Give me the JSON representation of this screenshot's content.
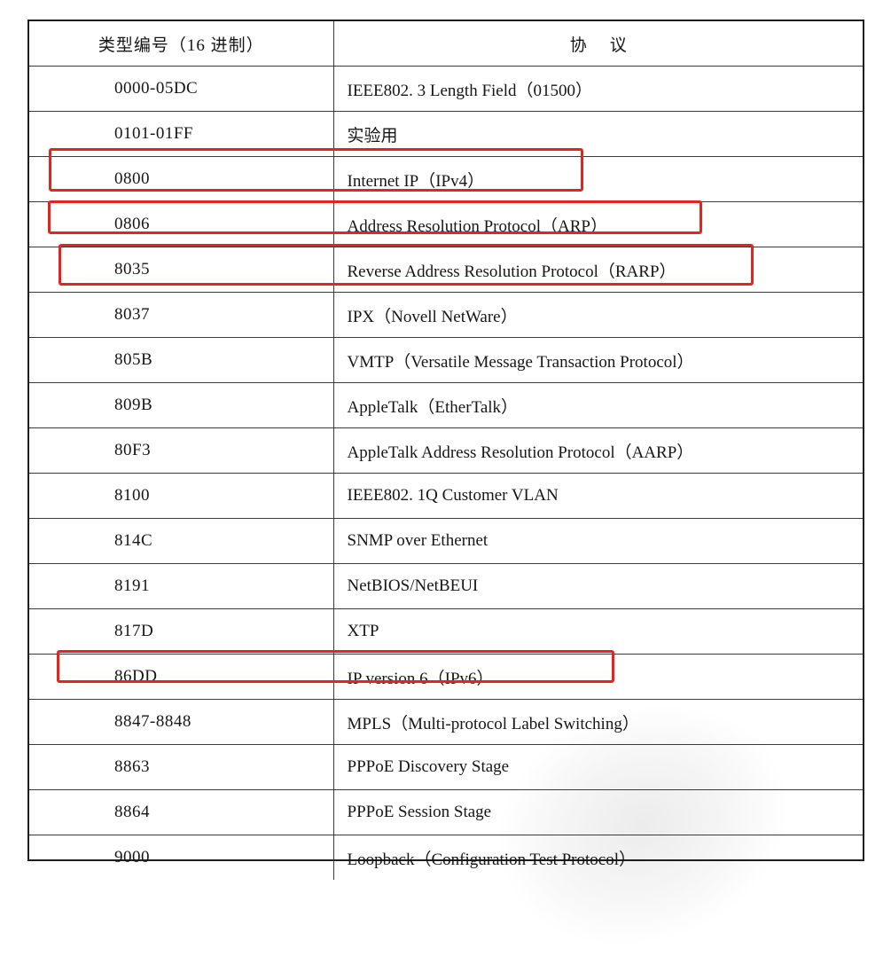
{
  "table": {
    "header": {
      "type_col": "类型编号（16 进制）",
      "protocol_col": "协议"
    },
    "rows": [
      {
        "code": "0000-05DC",
        "protocol": "IEEE802. 3 Length Field（01500）",
        "highlighted": false
      },
      {
        "code": "0101-01FF",
        "protocol": "实验用",
        "highlighted": false
      },
      {
        "code": "0800",
        "protocol": "Internet IP（IPv4）",
        "highlighted": true
      },
      {
        "code": "0806",
        "protocol": "Address Resolution Protocol（ARP）",
        "highlighted": true
      },
      {
        "code": "8035",
        "protocol": "Reverse Address Resolution Protocol（RARP）",
        "highlighted": true
      },
      {
        "code": "8037",
        "protocol": "IPX（Novell NetWare）",
        "highlighted": false
      },
      {
        "code": "805B",
        "protocol": "VMTP（Versatile Message Transaction Protocol）",
        "highlighted": false
      },
      {
        "code": "809B",
        "protocol": "AppleTalk（EtherTalk）",
        "highlighted": false
      },
      {
        "code": "80F3",
        "protocol": "AppleTalk Address Resolution Protocol（AARP）",
        "highlighted": false
      },
      {
        "code": "8100",
        "protocol": "IEEE802. 1Q Customer VLAN",
        "highlighted": false
      },
      {
        "code": "814C",
        "protocol": "SNMP over Ethernet",
        "highlighted": false
      },
      {
        "code": "8191",
        "protocol": "NetBIOS/NetBEUI",
        "highlighted": false
      },
      {
        "code": "817D",
        "protocol": "XTP",
        "highlighted": false
      },
      {
        "code": "86DD",
        "protocol": "IP version 6（IPv6）",
        "highlighted": true
      },
      {
        "code": "8847-8848",
        "protocol": "MPLS（Multi-protocol Label Switching）",
        "highlighted": false
      },
      {
        "code": "8863",
        "protocol": "PPPoE Discovery Stage",
        "highlighted": false
      },
      {
        "code": "8864",
        "protocol": "PPPoE Session Stage",
        "highlighted": false
      },
      {
        "code": "9000",
        "protocol": "Loopback（Configuration Test Protocol）",
        "highlighted": false
      }
    ]
  },
  "colors": {
    "highlight": "#e8231e",
    "text": "#161616",
    "rule": "#3a3a3a"
  }
}
